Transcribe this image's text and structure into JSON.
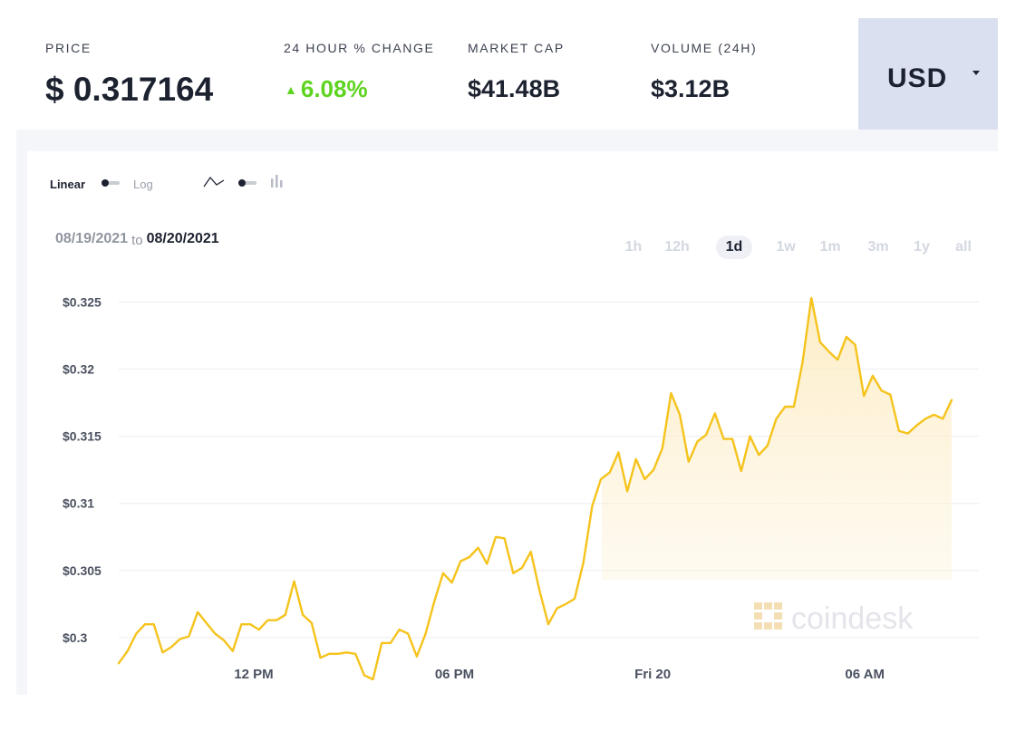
{
  "stats": {
    "price": {
      "label": "PRICE",
      "value": "$ 0.317164"
    },
    "change": {
      "label": "24 HOUR % CHANGE",
      "value": "6.08%",
      "arrow": "▲",
      "color": "#5ed420"
    },
    "market_cap": {
      "label": "MARKET CAP",
      "value": "$41.48B"
    },
    "volume": {
      "label": "VOLUME (24H)",
      "value": "$3.12B"
    }
  },
  "currency": {
    "label": "USD",
    "icon": "caret-down-icon"
  },
  "scale_toggle": {
    "left": "Linear",
    "right": "Log",
    "selected": "Linear"
  },
  "chart_type_toggle": {
    "left_icon": "line-chart-icon",
    "right_icon": "bar-chart-icon",
    "selected": "line"
  },
  "date_range": {
    "start": "08/19/2021",
    "connector": "to",
    "end": "08/20/2021"
  },
  "ranges": [
    "1h",
    "12h",
    "1d",
    "1w",
    "1m",
    "3m",
    "1y",
    "all"
  ],
  "active_range": "1d",
  "watermark": "coindesk",
  "colors": {
    "line": "#f5c31c",
    "fill": "#fdf0cf",
    "positive": "#5ed420",
    "currency_bg": "#dbe0f1"
  },
  "chart_data": {
    "type": "area",
    "title": "",
    "xlabel": "",
    "ylabel": "",
    "ylim": [
      0.2971,
      0.3261
    ],
    "xlim": [
      0,
      98
    ],
    "grid": true,
    "y_ticks": [
      0.3,
      0.305,
      0.31,
      0.315,
      0.32,
      0.325
    ],
    "y_tick_labels": [
      "$0.3",
      "$0.305",
      "$0.31",
      "$0.315",
      "$0.32",
      "$0.325"
    ],
    "x_ticks": [
      15.4,
      38.3,
      60.9,
      85.1
    ],
    "x_tick_labels": [
      "12 PM",
      "06 PM",
      "Fri 20",
      "06 AM"
    ],
    "series": [
      {
        "values": [
          0.2981,
          0.299,
          0.3003,
          0.301,
          0.301,
          0.2989,
          0.2993,
          0.2999,
          0.3001,
          0.3019,
          0.3011,
          0.3003,
          0.2998,
          0.299,
          0.301,
          0.301,
          0.3006,
          0.3013,
          0.3013,
          0.3017,
          0.3042,
          0.3017,
          0.3011,
          0.2985,
          0.2988,
          0.2988,
          0.2989,
          0.2988,
          0.2972,
          0.2969,
          0.2996,
          0.2996,
          0.3006,
          0.3003,
          0.2986,
          0.3003,
          0.3027,
          0.3048,
          0.3041,
          0.3057,
          0.306,
          0.3067,
          0.3055,
          0.3075,
          0.3074,
          0.3048,
          0.3052,
          0.3064,
          0.3035,
          0.301,
          0.3022,
          0.3025,
          0.3029,
          0.3056,
          0.3098,
          0.3118,
          0.3123,
          0.3138,
          0.3109,
          0.3133,
          0.3118,
          0.3125,
          0.3141,
          0.3182,
          0.3166,
          0.3131,
          0.3146,
          0.3151,
          0.3167,
          0.3148,
          0.3148,
          0.3124,
          0.315,
          0.3136,
          0.3143,
          0.3163,
          0.3172,
          0.3172,
          0.3205,
          0.3253,
          0.322,
          0.3213,
          0.3207,
          0.3224,
          0.3218,
          0.318,
          0.3195,
          0.3184,
          0.3181,
          0.3154,
          0.3152,
          0.3158,
          0.3163,
          0.3166,
          0.3163,
          0.3177
        ]
      }
    ]
  }
}
